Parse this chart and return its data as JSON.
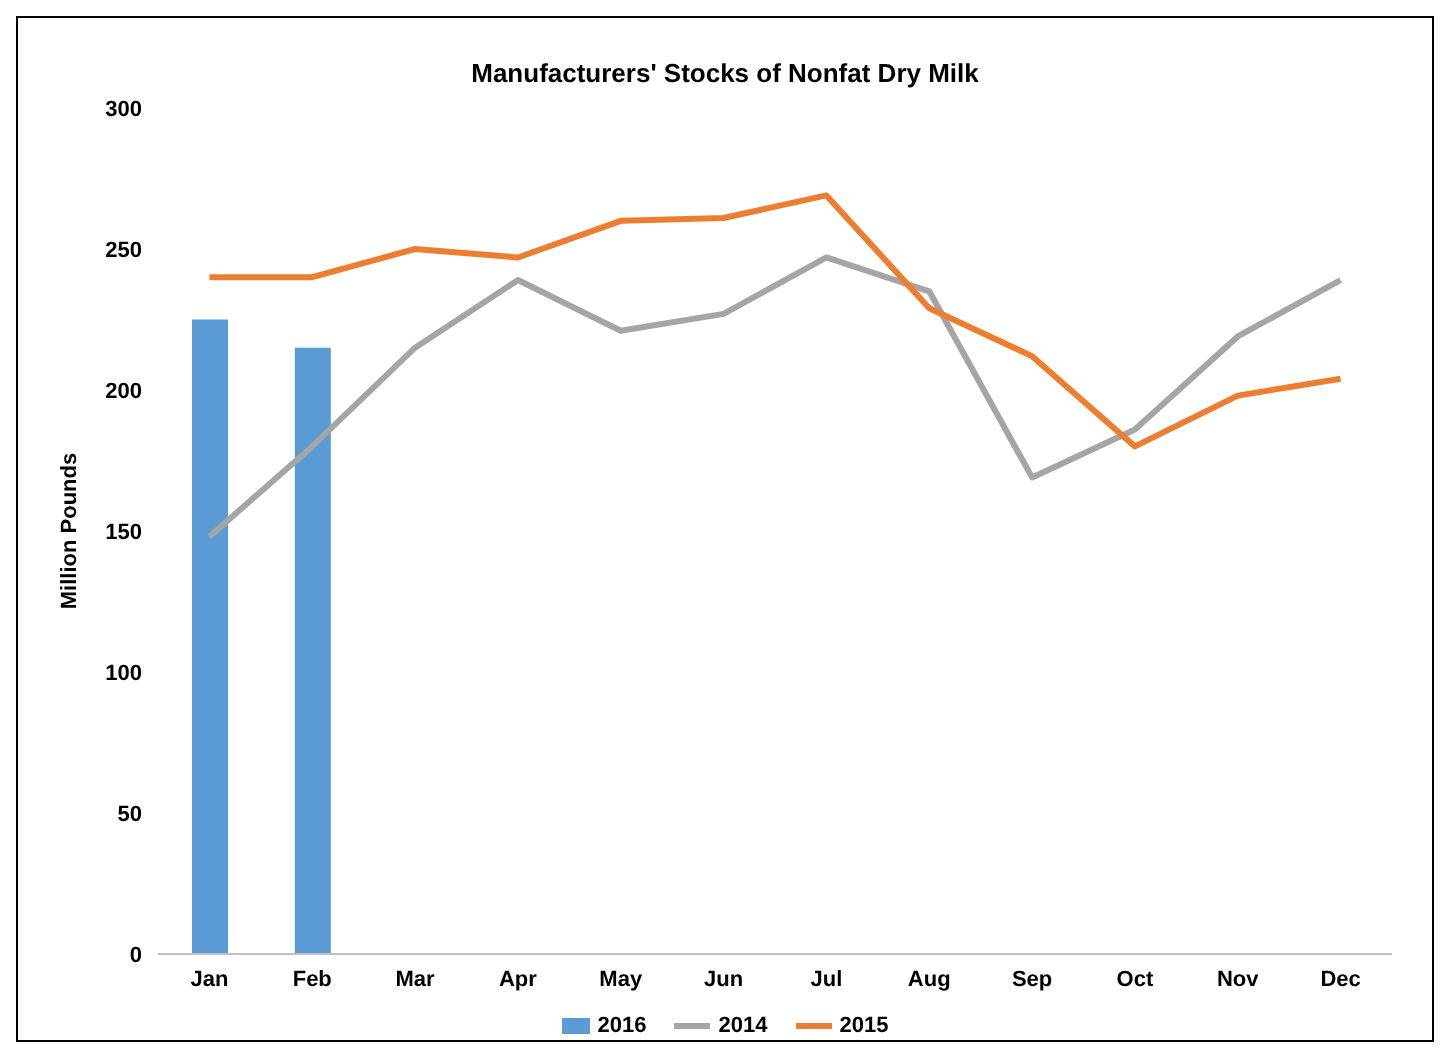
{
  "chart_data": {
    "type": "line",
    "title": "Manufacturers' Stocks of Nonfat Dry Milk",
    "ylabel": "Million Pounds",
    "categories": [
      "Jan",
      "Feb",
      "Mar",
      "Apr",
      "May",
      "Jun",
      "Jul",
      "Aug",
      "Sep",
      "Oct",
      "Nov",
      "Dec"
    ],
    "series": [
      {
        "name": "2016",
        "type": "bar",
        "color": "#5b9bd5",
        "values": [
          225,
          215,
          null,
          null,
          null,
          null,
          null,
          null,
          null,
          null,
          null,
          null
        ]
      },
      {
        "name": "2014",
        "color": "#a5a5a5",
        "values": [
          148,
          180,
          215,
          239,
          221,
          227,
          247,
          235,
          169,
          186,
          219,
          239
        ]
      },
      {
        "name": "2015",
        "color": "#ed7d31",
        "values": [
          240,
          240,
          250,
          247,
          260,
          261,
          269,
          229,
          212,
          180,
          198,
          204
        ]
      }
    ],
    "ylim": [
      0,
      300
    ],
    "yticks": [
      0,
      50,
      100,
      150,
      200,
      250,
      300
    ],
    "grid": false,
    "legend": "bottom",
    "marker": "none"
  }
}
